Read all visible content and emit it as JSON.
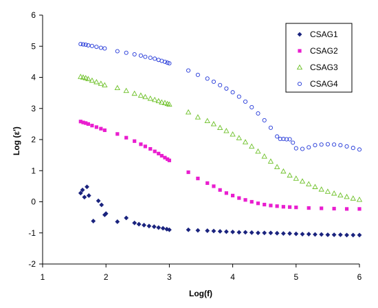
{
  "chart_data": {
    "type": "scatter",
    "title": "",
    "xlabel": "Log(f)",
    "ylabel": "Log (ε')",
    "xlim": [
      1,
      6
    ],
    "ylim": [
      -2,
      6
    ],
    "xticks": [
      1,
      2,
      3,
      4,
      5,
      6
    ],
    "yticks": [
      -2,
      -1,
      0,
      1,
      2,
      3,
      4,
      5,
      6
    ],
    "grid": false,
    "legend_position": "top-right",
    "series": [
      {
        "name": "CSAG1",
        "marker": "diamond",
        "color": "#1a237e",
        "points": [
          [
            1.6,
            0.28
          ],
          [
            1.63,
            0.38
          ],
          [
            1.66,
            0.15
          ],
          [
            1.7,
            0.48
          ],
          [
            1.73,
            0.2
          ],
          [
            1.8,
            -0.62
          ],
          [
            1.88,
            0.03
          ],
          [
            1.93,
            -0.1
          ],
          [
            1.98,
            -0.42
          ],
          [
            2.0,
            -0.38
          ],
          [
            2.18,
            -0.64
          ],
          [
            2.32,
            -0.52
          ],
          [
            2.45,
            -0.68
          ],
          [
            2.52,
            -0.72
          ],
          [
            2.6,
            -0.75
          ],
          [
            2.68,
            -0.78
          ],
          [
            2.76,
            -0.8
          ],
          [
            2.83,
            -0.83
          ],
          [
            2.9,
            -0.85
          ],
          [
            2.96,
            -0.88
          ],
          [
            3.0,
            -0.9
          ],
          [
            3.3,
            -0.9
          ],
          [
            3.45,
            -0.92
          ],
          [
            3.6,
            -0.93
          ],
          [
            3.7,
            -0.94
          ],
          [
            3.8,
            -0.95
          ],
          [
            3.9,
            -0.96
          ],
          [
            4.0,
            -0.97
          ],
          [
            4.1,
            -0.98
          ],
          [
            4.2,
            -0.98
          ],
          [
            4.3,
            -0.99
          ],
          [
            4.4,
            -1.0
          ],
          [
            4.5,
            -1.0
          ],
          [
            4.6,
            -1.0
          ],
          [
            4.7,
            -1.01
          ],
          [
            4.8,
            -1.02
          ],
          [
            4.9,
            -1.02
          ],
          [
            5.0,
            -1.03
          ],
          [
            5.1,
            -1.04
          ],
          [
            5.2,
            -1.04
          ],
          [
            5.3,
            -1.05
          ],
          [
            5.4,
            -1.05
          ],
          [
            5.5,
            -1.06
          ],
          [
            5.6,
            -1.06
          ],
          [
            5.7,
            -1.06
          ],
          [
            5.8,
            -1.07
          ],
          [
            5.9,
            -1.07
          ],
          [
            6.0,
            -1.07
          ]
        ]
      },
      {
        "name": "CSAG2",
        "marker": "square",
        "color": "#e91ecf",
        "points": [
          [
            1.6,
            2.58
          ],
          [
            1.64,
            2.55
          ],
          [
            1.68,
            2.53
          ],
          [
            1.72,
            2.5
          ],
          [
            1.78,
            2.45
          ],
          [
            1.85,
            2.4
          ],
          [
            1.92,
            2.35
          ],
          [
            1.98,
            2.3
          ],
          [
            2.18,
            2.18
          ],
          [
            2.32,
            2.06
          ],
          [
            2.45,
            1.95
          ],
          [
            2.55,
            1.85
          ],
          [
            2.62,
            1.78
          ],
          [
            2.7,
            1.7
          ],
          [
            2.77,
            1.62
          ],
          [
            2.83,
            1.55
          ],
          [
            2.88,
            1.48
          ],
          [
            2.93,
            1.42
          ],
          [
            2.97,
            1.37
          ],
          [
            3.0,
            1.33
          ],
          [
            3.3,
            0.95
          ],
          [
            3.45,
            0.75
          ],
          [
            3.6,
            0.6
          ],
          [
            3.7,
            0.5
          ],
          [
            3.8,
            0.38
          ],
          [
            3.9,
            0.28
          ],
          [
            4.0,
            0.2
          ],
          [
            4.1,
            0.12
          ],
          [
            4.2,
            0.06
          ],
          [
            4.3,
            0.0
          ],
          [
            4.4,
            -0.05
          ],
          [
            4.5,
            -0.09
          ],
          [
            4.6,
            -0.12
          ],
          [
            4.7,
            -0.14
          ],
          [
            4.8,
            -0.16
          ],
          [
            4.9,
            -0.17
          ],
          [
            5.0,
            -0.18
          ],
          [
            5.2,
            -0.2
          ],
          [
            5.4,
            -0.21
          ],
          [
            5.6,
            -0.22
          ],
          [
            5.8,
            -0.23
          ],
          [
            6.0,
            -0.23
          ]
        ]
      },
      {
        "name": "CSAG3",
        "marker": "triangle",
        "color": "#6cc026",
        "points": [
          [
            1.6,
            4.02
          ],
          [
            1.64,
            4.0
          ],
          [
            1.68,
            3.98
          ],
          [
            1.72,
            3.95
          ],
          [
            1.78,
            3.9
          ],
          [
            1.85,
            3.85
          ],
          [
            1.92,
            3.8
          ],
          [
            1.98,
            3.75
          ],
          [
            2.18,
            3.66
          ],
          [
            2.32,
            3.57
          ],
          [
            2.45,
            3.48
          ],
          [
            2.55,
            3.42
          ],
          [
            2.62,
            3.37
          ],
          [
            2.7,
            3.32
          ],
          [
            2.77,
            3.28
          ],
          [
            2.83,
            3.24
          ],
          [
            2.88,
            3.2
          ],
          [
            2.93,
            3.18
          ],
          [
            2.97,
            3.15
          ],
          [
            3.0,
            3.13
          ],
          [
            3.3,
            2.88
          ],
          [
            3.45,
            2.72
          ],
          [
            3.6,
            2.6
          ],
          [
            3.7,
            2.5
          ],
          [
            3.8,
            2.38
          ],
          [
            3.9,
            2.28
          ],
          [
            4.0,
            2.17
          ],
          [
            4.1,
            2.05
          ],
          [
            4.2,
            1.92
          ],
          [
            4.3,
            1.78
          ],
          [
            4.4,
            1.62
          ],
          [
            4.5,
            1.46
          ],
          [
            4.6,
            1.3
          ],
          [
            4.7,
            1.12
          ],
          [
            4.8,
            0.98
          ],
          [
            4.9,
            0.85
          ],
          [
            5.0,
            0.75
          ],
          [
            5.1,
            0.66
          ],
          [
            5.2,
            0.57
          ],
          [
            5.3,
            0.48
          ],
          [
            5.4,
            0.4
          ],
          [
            5.5,
            0.33
          ],
          [
            5.6,
            0.27
          ],
          [
            5.7,
            0.21
          ],
          [
            5.8,
            0.16
          ],
          [
            5.9,
            0.11
          ],
          [
            6.0,
            0.07
          ]
        ]
      },
      {
        "name": "CSAG4",
        "marker": "circle",
        "color": "#2035d8",
        "points": [
          [
            1.6,
            5.07
          ],
          [
            1.64,
            5.06
          ],
          [
            1.68,
            5.05
          ],
          [
            1.72,
            5.03
          ],
          [
            1.78,
            5.01
          ],
          [
            1.85,
            4.98
          ],
          [
            1.92,
            4.95
          ],
          [
            1.98,
            4.93
          ],
          [
            2.18,
            4.84
          ],
          [
            2.32,
            4.79
          ],
          [
            2.45,
            4.74
          ],
          [
            2.55,
            4.7
          ],
          [
            2.62,
            4.66
          ],
          [
            2.7,
            4.63
          ],
          [
            2.77,
            4.6
          ],
          [
            2.83,
            4.56
          ],
          [
            2.88,
            4.53
          ],
          [
            2.93,
            4.5
          ],
          [
            2.97,
            4.47
          ],
          [
            3.0,
            4.45
          ],
          [
            3.3,
            4.22
          ],
          [
            3.45,
            4.08
          ],
          [
            3.6,
            3.96
          ],
          [
            3.7,
            3.86
          ],
          [
            3.8,
            3.75
          ],
          [
            3.9,
            3.64
          ],
          [
            4.0,
            3.52
          ],
          [
            4.1,
            3.38
          ],
          [
            4.2,
            3.22
          ],
          [
            4.3,
            3.04
          ],
          [
            4.4,
            2.84
          ],
          [
            4.5,
            2.62
          ],
          [
            4.6,
            2.38
          ],
          [
            4.7,
            2.1
          ],
          [
            4.75,
            2.02
          ],
          [
            4.8,
            2.02
          ],
          [
            4.85,
            2.01
          ],
          [
            4.9,
            2.01
          ],
          [
            4.95,
            1.9
          ],
          [
            5.0,
            1.72
          ],
          [
            5.1,
            1.7
          ],
          [
            5.2,
            1.75
          ],
          [
            5.3,
            1.82
          ],
          [
            5.4,
            1.84
          ],
          [
            5.5,
            1.85
          ],
          [
            5.6,
            1.84
          ],
          [
            5.7,
            1.82
          ],
          [
            5.8,
            1.78
          ],
          [
            5.9,
            1.73
          ],
          [
            6.0,
            1.68
          ]
        ]
      }
    ]
  }
}
